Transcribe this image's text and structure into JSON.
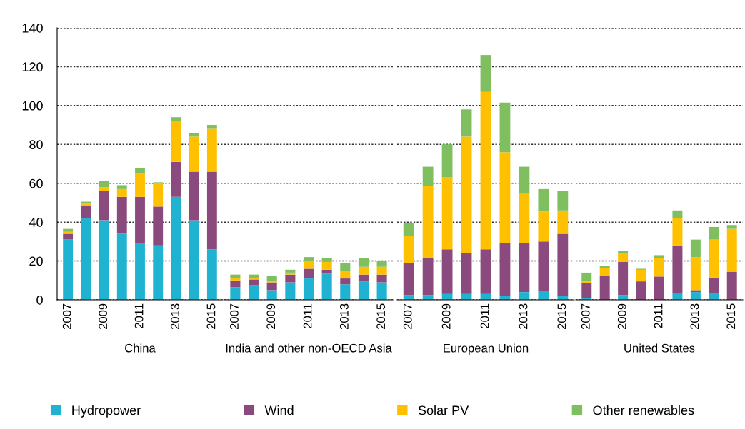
{
  "chart_data": [
    {
      "type": "bar",
      "stacked": true,
      "xlabel": "China",
      "categories": [
        "2007",
        null,
        "2009",
        null,
        "2011",
        null,
        "2013",
        null,
        "2015"
      ],
      "ylim": [
        0,
        140
      ],
      "yticks": [
        0,
        20,
        40,
        60,
        80,
        100,
        120,
        140
      ],
      "grid": "y",
      "legend": "bottom",
      "series": [
        {
          "name": "Hydropower",
          "color": "#1fb3d1",
          "values": [
            31,
            42,
            41,
            34,
            29,
            28,
            53,
            41,
            26
          ]
        },
        {
          "name": "Wind",
          "color": "#8b4a7e",
          "values": [
            3,
            6.5,
            15,
            19,
            24,
            20,
            18,
            25,
            40
          ]
        },
        {
          "name": "Solar PV",
          "color": "#ffc000",
          "values": [
            1,
            1,
            2,
            4,
            12,
            12,
            21,
            18,
            22
          ]
        },
        {
          "name": "Other renewables",
          "color": "#7fbf5f",
          "values": [
            1.5,
            1,
            3,
            2,
            3,
            0.5,
            2,
            2,
            2
          ]
        }
      ]
    },
    {
      "type": "bar",
      "stacked": true,
      "xlabel": "India and other non-OECD Asia",
      "categories": [
        "2007",
        null,
        "2009",
        null,
        "2011",
        null,
        "2013",
        null,
        "2015"
      ],
      "ylim": [
        0,
        140
      ],
      "yticks": [
        0,
        20,
        40,
        60,
        80,
        100,
        120,
        140
      ],
      "grid": "y",
      "tick_labels": "x",
      "series": [
        {
          "color": "#1fb3d1",
          "values": [
            6.5,
            7.5,
            5,
            9,
            11,
            13.5,
            8,
            9.5,
            9
          ]
        },
        {
          "color": "#8b4a7e",
          "values": [
            3.5,
            3,
            4,
            4,
            5,
            2,
            3,
            3.5,
            4
          ]
        },
        {
          "color": "#ffc000",
          "values": [
            1,
            0.5,
            0.5,
            1,
            4,
            4,
            4,
            4,
            4
          ]
        },
        {
          "color": "#7fbf5f",
          "values": [
            2,
            2,
            3,
            1.5,
            2,
            2,
            4,
            4.5,
            3
          ]
        }
      ]
    },
    {
      "type": "bar",
      "stacked": true,
      "xlabel": "European Union",
      "categories": [
        "2007",
        null,
        "2009",
        null,
        "2011",
        null,
        "2013",
        null,
        "2015"
      ],
      "ylim": [
        0,
        140
      ],
      "yticks": [
        0,
        20,
        40,
        60,
        80,
        100,
        120,
        140
      ],
      "grid": "y",
      "tick_labels": "x",
      "series": [
        {
          "color": "#1fb3d1",
          "values": [
            2.5,
            2.5,
            3,
            3,
            3,
            2,
            4,
            4.5,
            2
          ]
        },
        {
          "color": "#8b4a7e",
          "values": [
            16.5,
            19,
            23,
            21,
            23,
            27,
            25,
            25.5,
            32
          ]
        },
        {
          "color": "#ffc000",
          "values": [
            14,
            37,
            37,
            60,
            81,
            47,
            25.5,
            15.5,
            12
          ]
        },
        {
          "color": "#7fbf5f",
          "values": [
            6.5,
            10,
            17,
            14,
            19,
            25.5,
            14,
            11.5,
            10
          ]
        }
      ]
    },
    {
      "type": "bar",
      "stacked": true,
      "xlabel": "United States",
      "categories": [
        "2007",
        null,
        "2009",
        null,
        "2011",
        null,
        "2013",
        null,
        "2015"
      ],
      "ylim": [
        0,
        140
      ],
      "yticks": [
        0,
        20,
        40,
        60,
        80,
        100,
        120,
        140
      ],
      "grid": "y",
      "tick_labels": "x",
      "series": [
        {
          "color": "#1fb3d1",
          "values": [
            1,
            null,
            2.5,
            null,
            null,
            3,
            4,
            3.5,
            null
          ]
        },
        {
          "color": "#8b4a7e",
          "values": [
            7.5,
            12.5,
            17,
            9.5,
            12,
            25,
            1,
            8,
            14.5
          ]
        },
        {
          "color": "#ffc000",
          "values": [
            1,
            4,
            4.5,
            6,
            9.5,
            14,
            17,
            19.5,
            22
          ]
        },
        {
          "color": "#7fbf5f",
          "values": [
            4.5,
            1,
            1,
            0.5,
            1.5,
            4,
            9,
            6.5,
            2
          ]
        }
      ]
    }
  ]
}
